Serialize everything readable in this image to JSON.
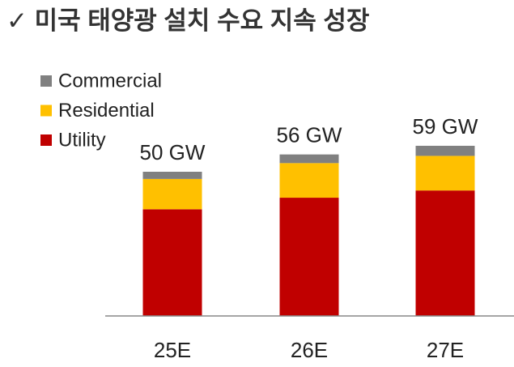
{
  "chart_data": {
    "type": "stacked_bar",
    "title": "✓ 미국 태양광 설치 수요 지속 성장",
    "categories": [
      "25E",
      "26E",
      "27E"
    ],
    "series": [
      {
        "name": "Utility",
        "color": "#c00000",
        "values": [
          37,
          41,
          43.5
        ]
      },
      {
        "name": "Residential",
        "color": "#ffc000",
        "values": [
          10.5,
          12,
          12
        ]
      },
      {
        "name": "Commercial",
        "color": "#808080",
        "values": [
          2.5,
          3,
          3.5
        ]
      }
    ],
    "values": [
      50,
      56,
      59
    ],
    "value_labels": [
      "50 GW",
      "56 GW",
      "59 GW"
    ],
    "legend": "upper-left"
  }
}
